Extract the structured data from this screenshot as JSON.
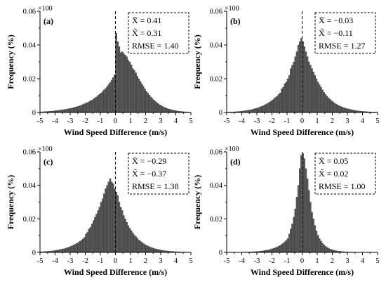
{
  "figure": {
    "background": "#ffffff",
    "bar_color": "#5a5a5a",
    "bar_edge": "#2a2a2a"
  },
  "chart_data": [
    {
      "type": "bar",
      "panel_label": "(a)",
      "xlabel": "Wind Speed Difference (m/s)",
      "ylabel": "Frequency (%)",
      "y_multiplier": "×100",
      "xlim": [
        -5,
        5
      ],
      "ylim": [
        0,
        0.06
      ],
      "xticks": [
        "-5",
        "-4",
        "-3",
        "-2",
        "-1",
        "0",
        "1",
        "2",
        "3",
        "4",
        "5"
      ],
      "yticks": [
        "0",
        "0.02",
        "0.04",
        "0.06"
      ],
      "reference_line_x": 0,
      "legend_position": "top-right",
      "stats": {
        "mean_label": "X̄ = 0.41",
        "median_label": "X̃ = 0.31",
        "rmse_label": "RMSE = 1.40"
      },
      "bin_width": 0.1,
      "x": [
        -4.95,
        -4.85,
        -4.75,
        -4.65,
        -4.55,
        -4.45,
        -4.35,
        -4.25,
        -4.15,
        -4.05,
        -3.95,
        -3.85,
        -3.75,
        -3.65,
        -3.55,
        -3.45,
        -3.35,
        -3.25,
        -3.15,
        -3.05,
        -2.95,
        -2.85,
        -2.75,
        -2.65,
        -2.55,
        -2.45,
        -2.35,
        -2.25,
        -2.15,
        -2.05,
        -1.95,
        -1.85,
        -1.75,
        -1.65,
        -1.55,
        -1.45,
        -1.35,
        -1.25,
        -1.15,
        -1.05,
        -0.95,
        -0.85,
        -0.75,
        -0.65,
        -0.55,
        -0.45,
        -0.35,
        -0.25,
        -0.15,
        -0.05,
        0.05,
        0.15,
        0.25,
        0.35,
        0.45,
        0.55,
        0.65,
        0.75,
        0.85,
        0.95,
        1.05,
        1.15,
        1.25,
        1.35,
        1.45,
        1.55,
        1.65,
        1.75,
        1.85,
        1.95,
        2.05,
        2.15,
        2.25,
        2.35,
        2.45,
        2.55,
        2.65,
        2.75,
        2.85,
        2.95,
        3.05,
        3.15,
        3.25,
        3.35,
        3.45,
        3.55,
        3.65,
        3.75,
        3.85,
        3.95,
        4.05,
        4.15,
        4.25,
        4.35,
        4.45,
        4.55,
        4.65,
        4.75,
        4.85,
        4.95
      ],
      "values": [
        0.0003,
        0.0003,
        0.0005,
        0.0005,
        0.0006,
        0.0006,
        0.0007,
        0.0008,
        0.0008,
        0.0009,
        0.0011,
        0.0011,
        0.0013,
        0.0014,
        0.0015,
        0.0017,
        0.0018,
        0.0019,
        0.0022,
        0.0023,
        0.0025,
        0.0027,
        0.0029,
        0.0032,
        0.0035,
        0.0036,
        0.004,
        0.0044,
        0.0047,
        0.0052,
        0.0055,
        0.0059,
        0.0064,
        0.007,
        0.0074,
        0.008,
        0.0087,
        0.0093,
        0.0101,
        0.0108,
        0.0116,
        0.0124,
        0.0134,
        0.0143,
        0.0154,
        0.0166,
        0.0178,
        0.0192,
        0.0207,
        0.0223,
        0.047,
        0.042,
        0.039,
        0.0355,
        0.036,
        0.035,
        0.034,
        0.033,
        0.031,
        0.03,
        0.0282,
        0.026,
        0.025,
        0.0235,
        0.0215,
        0.02,
        0.0185,
        0.017,
        0.0155,
        0.014,
        0.0125,
        0.0115,
        0.0103,
        0.0092,
        0.0082,
        0.0074,
        0.0065,
        0.0058,
        0.0051,
        0.0045,
        0.004,
        0.0035,
        0.003,
        0.0027,
        0.0023,
        0.002,
        0.0018,
        0.0015,
        0.0013,
        0.0011,
        0.001,
        0.0008,
        0.0007,
        0.0006,
        0.0005,
        0.0004,
        0.0004,
        0.0003,
        0.0002,
        0.0002
      ]
    },
    {
      "type": "bar",
      "panel_label": "(b)",
      "xlabel": "Wind Speed Difference (m/s)",
      "ylabel": "Frequency (%)",
      "y_multiplier": "×100",
      "xlim": [
        -5,
        5
      ],
      "ylim": [
        0,
        0.06
      ],
      "xticks": [
        "-5",
        "-4",
        "-3",
        "-2",
        "-1",
        "0",
        "1",
        "2",
        "3",
        "4",
        "5"
      ],
      "yticks": [
        "0",
        "0.02",
        "0.04",
        "0.06"
      ],
      "reference_line_x": 0,
      "legend_position": "top-right",
      "stats": {
        "mean_label": "X̄ = −0.03",
        "median_label": "X̃ = −0.11",
        "rmse_label": "RMSE = 1.27"
      },
      "bin_width": 0.1,
      "x": [
        -4.95,
        -4.85,
        -4.75,
        -4.65,
        -4.55,
        -4.45,
        -4.35,
        -4.25,
        -4.15,
        -4.05,
        -3.95,
        -3.85,
        -3.75,
        -3.65,
        -3.55,
        -3.45,
        -3.35,
        -3.25,
        -3.15,
        -3.05,
        -2.95,
        -2.85,
        -2.75,
        -2.65,
        -2.55,
        -2.45,
        -2.35,
        -2.25,
        -2.15,
        -2.05,
        -1.95,
        -1.85,
        -1.75,
        -1.65,
        -1.55,
        -1.45,
        -1.35,
        -1.25,
        -1.15,
        -1.05,
        -0.95,
        -0.85,
        -0.75,
        -0.65,
        -0.55,
        -0.45,
        -0.35,
        -0.25,
        -0.15,
        -0.05,
        0.05,
        0.15,
        0.25,
        0.35,
        0.45,
        0.55,
        0.65,
        0.75,
        0.85,
        0.95,
        1.05,
        1.15,
        1.25,
        1.35,
        1.45,
        1.55,
        1.65,
        1.75,
        1.85,
        1.95,
        2.05,
        2.15,
        2.25,
        2.35,
        2.45,
        2.55,
        2.65,
        2.75,
        2.85,
        2.95,
        3.05,
        3.15,
        3.25,
        3.35,
        3.45,
        3.55,
        3.65,
        3.75,
        3.85,
        3.95,
        4.05,
        4.15,
        4.25,
        4.35,
        4.45,
        4.55,
        4.65,
        4.75,
        4.85,
        4.95
      ],
      "values": [
        0.0002,
        0.0002,
        0.0003,
        0.0003,
        0.0004,
        0.0004,
        0.0005,
        0.0005,
        0.0006,
        0.0007,
        0.0008,
        0.0009,
        0.0011,
        0.0012,
        0.0014,
        0.0015,
        0.0017,
        0.0019,
        0.0022,
        0.0024,
        0.0027,
        0.003,
        0.0034,
        0.0037,
        0.0041,
        0.0046,
        0.0051,
        0.0056,
        0.0062,
        0.0068,
        0.0075,
        0.0082,
        0.009,
        0.0098,
        0.0107,
        0.0116,
        0.014,
        0.015,
        0.017,
        0.018,
        0.02,
        0.022,
        0.026,
        0.028,
        0.03,
        0.033,
        0.036,
        0.04,
        0.042,
        0.044,
        0.042,
        0.039,
        0.036,
        0.033,
        0.03,
        0.028,
        0.026,
        0.024,
        0.022,
        0.02,
        0.018,
        0.0165,
        0.015,
        0.0135,
        0.012,
        0.0108,
        0.0097,
        0.0087,
        0.0078,
        0.007,
        0.0063,
        0.0056,
        0.005,
        0.0045,
        0.004,
        0.0036,
        0.0032,
        0.0029,
        0.0026,
        0.0023,
        0.0021,
        0.0019,
        0.0017,
        0.0015,
        0.0013,
        0.0012,
        0.001,
        0.0009,
        0.0008,
        0.0007,
        0.0006,
        0.0006,
        0.0005,
        0.0004,
        0.0004,
        0.0003,
        0.0003,
        0.0003,
        0.0002,
        0.0002
      ]
    },
    {
      "type": "bar",
      "panel_label": "(c)",
      "xlabel": "Wind Speed Difference (m/s)",
      "ylabel": "Frequency (%)",
      "y_multiplier": "×100",
      "xlim": [
        -5,
        5
      ],
      "ylim": [
        0,
        0.06
      ],
      "xticks": [
        "-5",
        "-4",
        "-3",
        "-2",
        "-1",
        "0",
        "1",
        "2",
        "3",
        "4",
        "5"
      ],
      "yticks": [
        "0",
        "0.02",
        "0.04",
        "0.06"
      ],
      "reference_line_x": 0,
      "legend_position": "top-right",
      "stats": {
        "mean_label": "X̄ = −0.29",
        "median_label": "X̃ = −0.37",
        "rmse_label": "RMSE = 1.38"
      },
      "bin_width": 0.1,
      "x": [
        -4.95,
        -4.85,
        -4.75,
        -4.65,
        -4.55,
        -4.45,
        -4.35,
        -4.25,
        -4.15,
        -4.05,
        -3.95,
        -3.85,
        -3.75,
        -3.65,
        -3.55,
        -3.45,
        -3.35,
        -3.25,
        -3.15,
        -3.05,
        -2.95,
        -2.85,
        -2.75,
        -2.65,
        -2.55,
        -2.45,
        -2.35,
        -2.25,
        -2.15,
        -2.05,
        -1.95,
        -1.85,
        -1.75,
        -1.65,
        -1.55,
        -1.45,
        -1.35,
        -1.25,
        -1.15,
        -1.05,
        -0.95,
        -0.85,
        -0.75,
        -0.65,
        -0.55,
        -0.45,
        -0.35,
        -0.25,
        -0.15,
        -0.05,
        0.05,
        0.15,
        0.25,
        0.35,
        0.45,
        0.55,
        0.65,
        0.75,
        0.85,
        0.95,
        1.05,
        1.15,
        1.25,
        1.35,
        1.45,
        1.55,
        1.65,
        1.75,
        1.85,
        1.95,
        2.05,
        2.15,
        2.25,
        2.35,
        2.45,
        2.55,
        2.65,
        2.75,
        2.85,
        2.95,
        3.05,
        3.15,
        3.25,
        3.35,
        3.45,
        3.55,
        3.65,
        3.75,
        3.85,
        3.95,
        4.05,
        4.15,
        4.25,
        4.35,
        4.45,
        4.55,
        4.65,
        4.75,
        4.85,
        4.95
      ],
      "values": [
        0.0003,
        0.0004,
        0.0004,
        0.0005,
        0.0006,
        0.0006,
        0.0007,
        0.0008,
        0.0009,
        0.001,
        0.0012,
        0.0013,
        0.0015,
        0.0017,
        0.0019,
        0.0021,
        0.0023,
        0.0026,
        0.0029,
        0.0032,
        0.0036,
        0.004,
        0.0044,
        0.0049,
        0.0054,
        0.006,
        0.0066,
        0.0073,
        0.008,
        0.009,
        0.011,
        0.012,
        0.014,
        0.015,
        0.017,
        0.019,
        0.021,
        0.023,
        0.025,
        0.027,
        0.03,
        0.032,
        0.035,
        0.038,
        0.04,
        0.042,
        0.044,
        0.042,
        0.041,
        0.038,
        0.036,
        0.034,
        0.03,
        0.027,
        0.025,
        0.022,
        0.02,
        0.018,
        0.016,
        0.0145,
        0.013,
        0.0117,
        0.0105,
        0.0094,
        0.0084,
        0.0075,
        0.0067,
        0.006,
        0.0053,
        0.0047,
        0.0042,
        0.0038,
        0.0034,
        0.003,
        0.0027,
        0.0024,
        0.0021,
        0.0019,
        0.0017,
        0.0015,
        0.0013,
        0.0012,
        0.001,
        0.0009,
        0.0008,
        0.0007,
        0.0006,
        0.0006,
        0.0005,
        0.0004,
        0.0004,
        0.0003,
        0.0003,
        0.0003,
        0.0002,
        0.0002,
        0.0002,
        0.0002,
        0.0001,
        0.0001
      ]
    },
    {
      "type": "bar",
      "panel_label": "(d)",
      "xlabel": "Wind Speed Difference (m/s)",
      "ylabel": "Frequency (%)",
      "y_multiplier": "×100",
      "xlim": [
        -5,
        5
      ],
      "ylim": [
        0,
        0.06
      ],
      "xticks": [
        "-5",
        "-4",
        "-3",
        "-2",
        "-1",
        "0",
        "1",
        "2",
        "3",
        "4",
        "5"
      ],
      "yticks": [
        "0",
        "0.02",
        "0.04",
        "0.06"
      ],
      "reference_line_x": 0,
      "legend_position": "top-right",
      "stats": {
        "mean_label": "X̄ = 0.05",
        "median_label": "X̃ = 0.02",
        "rmse_label": "RMSE = 1.00"
      },
      "bin_width": 0.1,
      "x": [
        -4.95,
        -4.85,
        -4.75,
        -4.65,
        -4.55,
        -4.45,
        -4.35,
        -4.25,
        -4.15,
        -4.05,
        -3.95,
        -3.85,
        -3.75,
        -3.65,
        -3.55,
        -3.45,
        -3.35,
        -3.25,
        -3.15,
        -3.05,
        -2.95,
        -2.85,
        -2.75,
        -2.65,
        -2.55,
        -2.45,
        -2.35,
        -2.25,
        -2.15,
        -2.05,
        -1.95,
        -1.85,
        -1.75,
        -1.65,
        -1.55,
        -1.45,
        -1.35,
        -1.25,
        -1.15,
        -1.05,
        -0.95,
        -0.85,
        -0.75,
        -0.65,
        -0.55,
        -0.45,
        -0.35,
        -0.25,
        -0.15,
        -0.05,
        0.05,
        0.15,
        0.25,
        0.35,
        0.45,
        0.55,
        0.65,
        0.75,
        0.85,
        0.95,
        1.05,
        1.15,
        1.25,
        1.35,
        1.45,
        1.55,
        1.65,
        1.75,
        1.85,
        1.95,
        2.05,
        2.15,
        2.25,
        2.35,
        2.45,
        2.55,
        2.65,
        2.75,
        2.85,
        2.95,
        3.05,
        3.15,
        3.25,
        3.35,
        3.45,
        3.55,
        3.65,
        3.75,
        3.85,
        3.95,
        4.05,
        4.15,
        4.25,
        4.35,
        4.45,
        4.55,
        4.65,
        4.75,
        4.85,
        4.95
      ],
      "values": [
        0.0001,
        0.0001,
        0.0001,
        0.0001,
        0.0001,
        0.0001,
        0.0001,
        0.0001,
        0.0001,
        0.0001,
        0.0001,
        0.0002,
        0.0002,
        0.0002,
        0.0002,
        0.0003,
        0.0003,
        0.0004,
        0.0004,
        0.0005,
        0.0005,
        0.0006,
        0.0007,
        0.0008,
        0.001,
        0.0011,
        0.0013,
        0.0014,
        0.0016,
        0.0019,
        0.0022,
        0.0025,
        0.0028,
        0.0032,
        0.0037,
        0.0042,
        0.0048,
        0.0055,
        0.0063,
        0.0072,
        0.0082,
        0.011,
        0.014,
        0.017,
        0.021,
        0.026,
        0.033,
        0.04,
        0.05,
        0.058,
        0.059,
        0.056,
        0.05,
        0.044,
        0.037,
        0.03,
        0.024,
        0.02,
        0.016,
        0.0128,
        0.0103,
        0.0083,
        0.0068,
        0.0055,
        0.0045,
        0.0037,
        0.003,
        0.0025,
        0.002,
        0.0017,
        0.0014,
        0.0012,
        0.001,
        0.0008,
        0.0007,
        0.0006,
        0.0005,
        0.0004,
        0.0003,
        0.0003,
        0.0002,
        0.0002,
        0.0002,
        0.0002,
        0.0001,
        0.0001,
        0.0001,
        0.0001,
        0.0001,
        0.0001,
        0.0001,
        0.0001,
        0.0001,
        0.0001,
        0.0001,
        0.0001,
        0.0001,
        0.0001,
        0.0001,
        0.0001
      ]
    }
  ]
}
